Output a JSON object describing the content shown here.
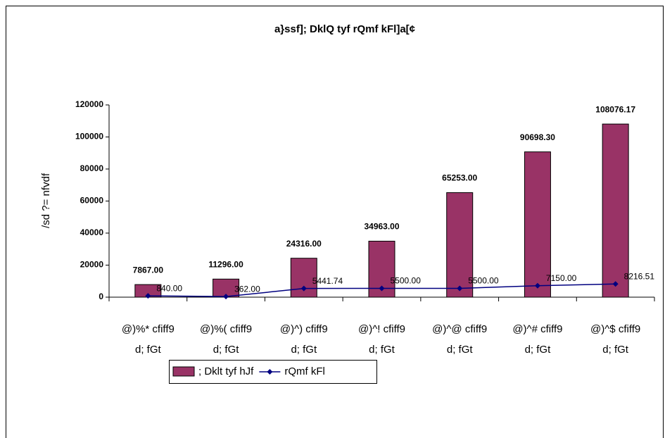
{
  "chart_data": {
    "type": "bar_line",
    "title": "a}ssf]; DklQ tyf rQmf kFl]a[¢",
    "y_label": "/sd ?= nfvdf",
    "categories": [
      [
        "@)%* cfiff9",
        "d; fGt"
      ],
      [
        "@)%( cfiff9",
        "d; fGt"
      ],
      [
        "@)^) cfiff9",
        "d; fGt"
      ],
      [
        "@)^! cfiff9",
        "d; fGt"
      ],
      [
        "@)^@ cfiff9",
        "d; fGt"
      ],
      [
        "@)^# cfiff9",
        "d; fGt"
      ],
      [
        "@)^$ cfiff9",
        "d; fGt"
      ]
    ],
    "series": [
      {
        "name": "; Dklt tyf hJf",
        "type": "bar",
        "color": "#993366",
        "values": [
          7867,
          11296,
          24316,
          34963,
          65253,
          90698.3,
          108076.17
        ],
        "value_labels": [
          "7867.00",
          "11296.00",
          "24316.00",
          "34963.00",
          "65253.00",
          "90698.30",
          "108076.17"
        ]
      },
      {
        "name": "rQmf kFl",
        "type": "line",
        "color": "#000080",
        "values": [
          840,
          362,
          5441.74,
          5500,
          5500,
          7150,
          8216.51
        ],
        "value_labels": [
          "840.00",
          "362.00",
          "5441.74",
          "5500.00",
          "5500.00",
          "7150.00",
          "8216.51"
        ]
      }
    ],
    "ylim": [
      0,
      120000
    ],
    "yticks": [
      0,
      20000,
      40000,
      60000,
      80000,
      100000,
      120000
    ],
    "legend": "bottom"
  }
}
